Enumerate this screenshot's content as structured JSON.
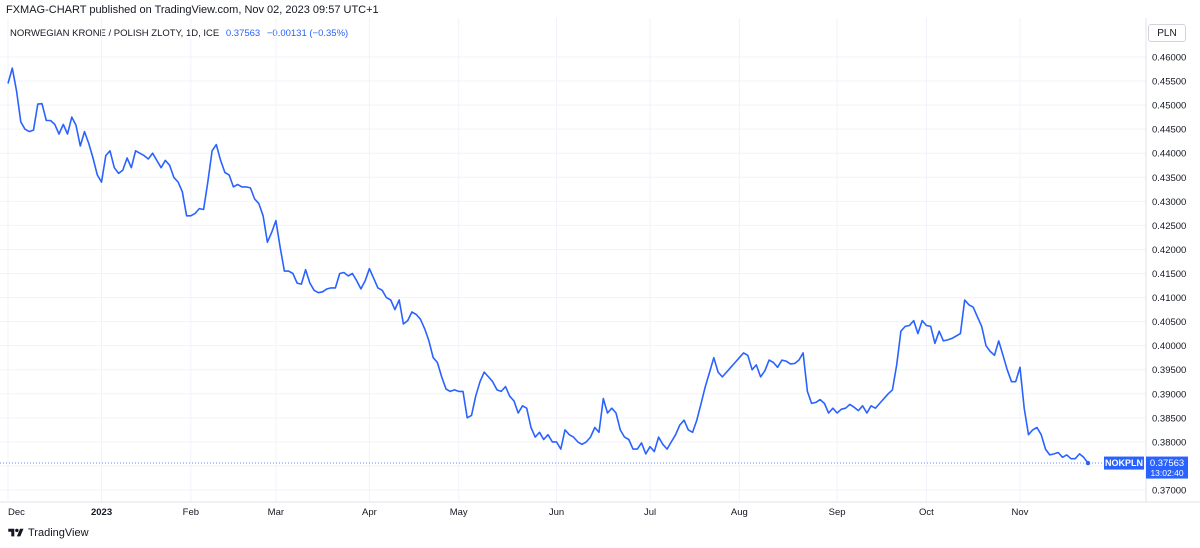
{
  "header": {
    "publisher": "FXMAG-CHART published on TradingView.com, Nov 02, 2023 09:57 UTC+1"
  },
  "legend": {
    "symbol_line": "NORWEGIAN KRONE / POLISH ZLOTY, 1D, ICE",
    "last": "0.37563",
    "change": "−0.00131 (−0.35%)"
  },
  "currency": "PLN",
  "price_label": {
    "ticker": "NOKPLN",
    "price": "0.37563",
    "countdown": "13:02:40"
  },
  "footer": {
    "brand": "TradingView"
  },
  "colors": {
    "line": "#2962ff",
    "grid": "#f0f3fa",
    "badge": "#2962ff"
  },
  "chart_data": {
    "type": "line",
    "title": "NORWEGIAN KRONE / POLISH ZLOTY, 1D, ICE",
    "ylim": [
      0.3675,
      0.4625
    ],
    "y_ticks": [
      "0.46000",
      "0.45500",
      "0.45000",
      "0.44500",
      "0.44000",
      "0.43500",
      "0.43000",
      "0.42500",
      "0.42000",
      "0.41500",
      "0.41000",
      "0.40500",
      "0.40000",
      "0.39500",
      "0.39000",
      "0.38500",
      "0.38000",
      "0.37500",
      "0.37000"
    ],
    "x_ticks": [
      {
        "label": "Dec",
        "index": 0,
        "bold": false
      },
      {
        "label": "2023",
        "index": 22,
        "bold": true
      },
      {
        "label": "Feb",
        "index": 43,
        "bold": false
      },
      {
        "label": "Mar",
        "index": 63,
        "bold": false
      },
      {
        "label": "Apr",
        "index": 85,
        "bold": false
      },
      {
        "label": "May",
        "index": 106,
        "bold": false
      },
      {
        "label": "Jun",
        "index": 129,
        "bold": false
      },
      {
        "label": "Jul",
        "index": 151,
        "bold": false
      },
      {
        "label": "Aug",
        "index": 172,
        "bold": false
      },
      {
        "label": "Sep",
        "index": 195,
        "bold": false
      },
      {
        "label": "Oct",
        "index": 216,
        "bold": false
      },
      {
        "label": "Nov",
        "index": 238,
        "bold": false
      }
    ],
    "values": [
      0.4545,
      0.4577,
      0.453,
      0.4465,
      0.445,
      0.4445,
      0.4448,
      0.4502,
      0.4503,
      0.4468,
      0.4468,
      0.446,
      0.444,
      0.446,
      0.444,
      0.4475,
      0.4458,
      0.4415,
      0.4445,
      0.442,
      0.439,
      0.4355,
      0.434,
      0.4395,
      0.4405,
      0.437,
      0.4358,
      0.4365,
      0.439,
      0.437,
      0.4405,
      0.44,
      0.4395,
      0.4388,
      0.44,
      0.4385,
      0.437,
      0.4385,
      0.4375,
      0.435,
      0.434,
      0.432,
      0.427,
      0.427,
      0.4275,
      0.4285,
      0.4283,
      0.434,
      0.4405,
      0.4418,
      0.4385,
      0.436,
      0.4355,
      0.433,
      0.4335,
      0.433,
      0.433,
      0.4328,
      0.4305,
      0.4295,
      0.427,
      0.4215,
      0.4235,
      0.426,
      0.4205,
      0.4155,
      0.4155,
      0.415,
      0.413,
      0.4128,
      0.4158,
      0.413,
      0.4115,
      0.411,
      0.4112,
      0.4118,
      0.412,
      0.412,
      0.415,
      0.4152,
      0.4145,
      0.415,
      0.4135,
      0.4118,
      0.4135,
      0.416,
      0.414,
      0.412,
      0.4115,
      0.41,
      0.4095,
      0.4075,
      0.4095,
      0.4045,
      0.4052,
      0.407,
      0.4065,
      0.4055,
      0.4035,
      0.401,
      0.3975,
      0.3965,
      0.3935,
      0.391,
      0.3905,
      0.3908,
      0.3905,
      0.3905,
      0.385,
      0.3855,
      0.3895,
      0.3925,
      0.3945,
      0.3935,
      0.3925,
      0.3908,
      0.3905,
      0.3915,
      0.3895,
      0.3885,
      0.386,
      0.3875,
      0.387,
      0.383,
      0.381,
      0.382,
      0.3805,
      0.3815,
      0.38,
      0.38,
      0.3785,
      0.3825,
      0.3815,
      0.381,
      0.38,
      0.3795,
      0.38,
      0.381,
      0.383,
      0.382,
      0.389,
      0.386,
      0.387,
      0.386,
      0.3825,
      0.381,
      0.3805,
      0.3785,
      0.3785,
      0.3798,
      0.3775,
      0.379,
      0.378,
      0.381,
      0.3795,
      0.3785,
      0.38,
      0.3815,
      0.3835,
      0.3845,
      0.3825,
      0.382,
      0.3845,
      0.388,
      0.3915,
      0.3945,
      0.3975,
      0.3945,
      0.3935,
      0.3945,
      0.3955,
      0.3965,
      0.3975,
      0.3985,
      0.398,
      0.395,
      0.396,
      0.3935,
      0.3948,
      0.397,
      0.3965,
      0.3955,
      0.397,
      0.3968,
      0.3962,
      0.3963,
      0.397,
      0.3985,
      0.3905,
      0.388,
      0.3882,
      0.3888,
      0.388,
      0.386,
      0.387,
      0.386,
      0.3868,
      0.387,
      0.3878,
      0.3872,
      0.3865,
      0.3875,
      0.386,
      0.3875,
      0.387,
      0.388,
      0.389,
      0.39,
      0.3908,
      0.396,
      0.403,
      0.404,
      0.4042,
      0.4052,
      0.4025,
      0.4052,
      0.4042,
      0.404,
      0.4005,
      0.403,
      0.401,
      0.4012,
      0.4015,
      0.402,
      0.4025,
      0.4095,
      0.4085,
      0.408,
      0.406,
      0.404,
      0.4,
      0.3988,
      0.398,
      0.401,
      0.398,
      0.395,
      0.3925,
      0.3925,
      0.3955,
      0.387,
      0.3815,
      0.3825,
      0.383,
      0.3815,
      0.3785,
      0.3773,
      0.3775,
      0.3778,
      0.3768,
      0.3773,
      0.3765,
      0.3765,
      0.3775,
      0.3768,
      0.3756
    ]
  }
}
